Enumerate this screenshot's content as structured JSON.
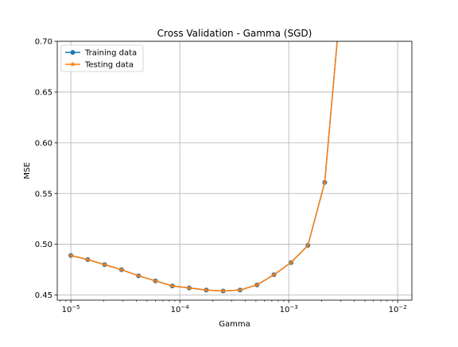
{
  "chart_data": {
    "type": "line",
    "title": "Cross Validation - Gamma (SGD)",
    "xlabel": "Gamma",
    "ylabel": "MSE",
    "xscale": "log",
    "xlim": [
      7.5e-06,
      0.0135
    ],
    "ylim": [
      0.445,
      0.7
    ],
    "grid": true,
    "legend_position": "top-left",
    "x": [
      1e-05,
      1.43e-05,
      2.04e-05,
      2.92e-05,
      4.18e-05,
      5.98e-05,
      8.55e-05,
      0.000122,
      0.000175,
      0.00025,
      0.000357,
      0.000511,
      0.000731,
      0.00105,
      0.0015,
      0.00214,
      0.00306
    ],
    "xticks": [
      {
        "value": 1e-05,
        "base": "10",
        "exp": "−5"
      },
      {
        "value": 0.0001,
        "base": "10",
        "exp": "−4"
      },
      {
        "value": 0.001,
        "base": "10",
        "exp": "−3"
      },
      {
        "value": 0.01,
        "base": "10",
        "exp": "−2"
      }
    ],
    "yticks": [
      "0.45",
      "0.50",
      "0.55",
      "0.60",
      "0.65",
      "0.70"
    ],
    "ytick_values": [
      0.45,
      0.5,
      0.55,
      0.6,
      0.65,
      0.7
    ],
    "series": [
      {
        "name": "Training data",
        "color": "#1f77b4",
        "marker": "circle",
        "values": [
          0.489,
          0.485,
          0.48,
          0.475,
          0.469,
          0.464,
          0.459,
          0.457,
          0.455,
          0.454,
          0.455,
          0.46,
          0.47,
          0.482,
          0.499,
          0.561,
          0.75
        ]
      },
      {
        "name": "Testing data",
        "color": "#ff7f0e",
        "marker": "star",
        "values": [
          0.489,
          0.485,
          0.48,
          0.475,
          0.469,
          0.464,
          0.459,
          0.457,
          0.455,
          0.454,
          0.455,
          0.46,
          0.47,
          0.482,
          0.499,
          0.561,
          0.75
        ]
      }
    ]
  }
}
